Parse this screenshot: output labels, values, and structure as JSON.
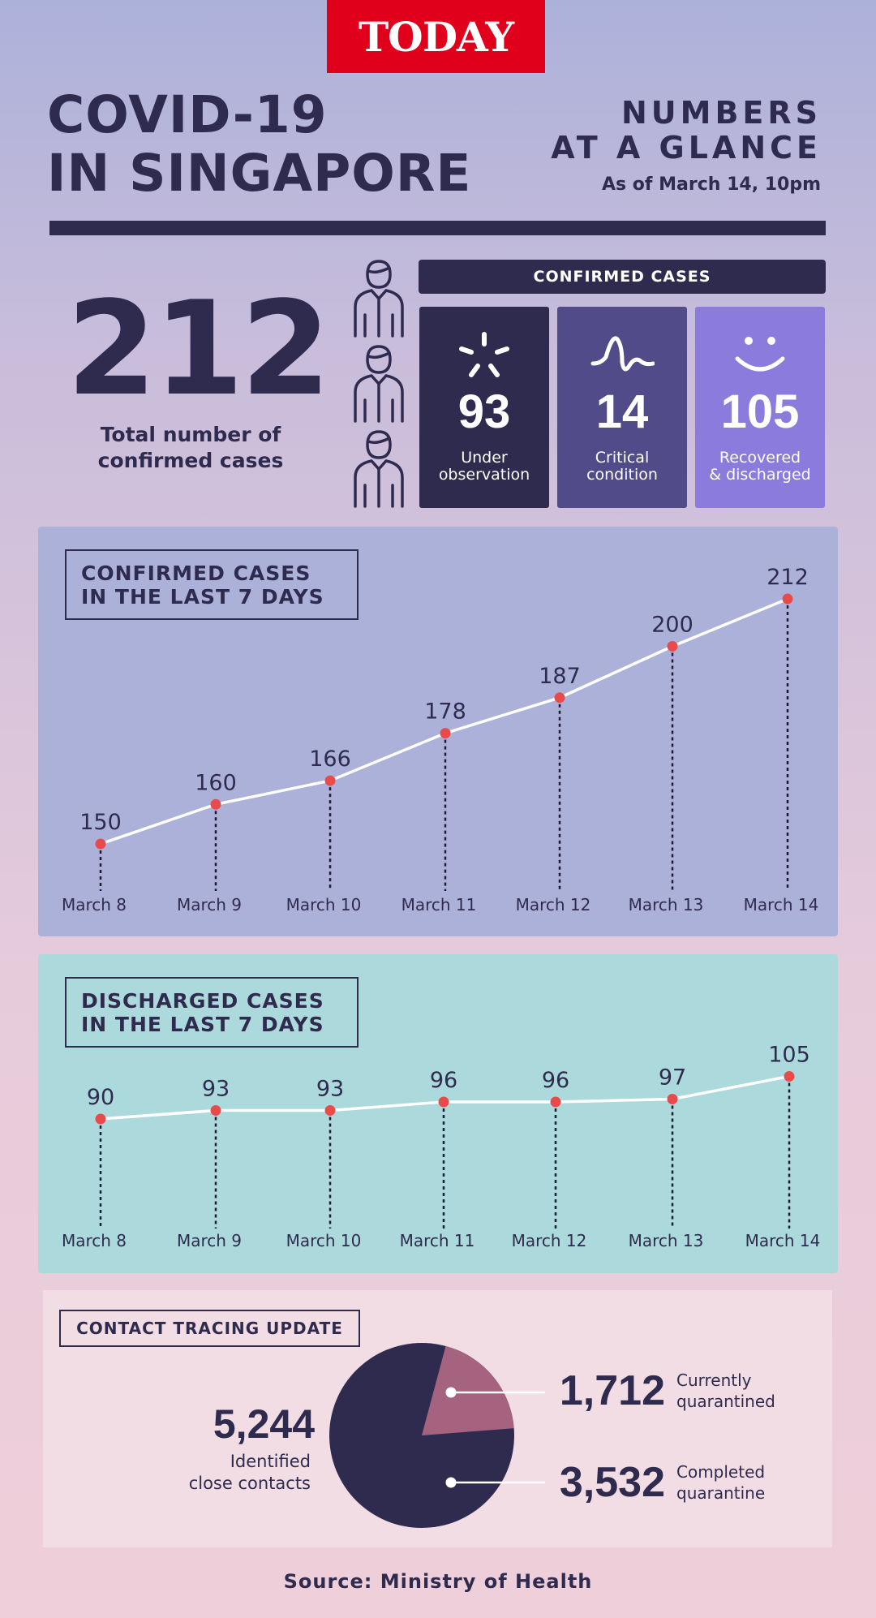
{
  "header": {
    "logo": "TODAY",
    "title_line1": "COVID-19",
    "title_line2": "IN SINGAPORE",
    "glance_line1": "NUMBERS",
    "glance_line2": "AT A GLANCE",
    "as_of": "As of March 14, 10pm"
  },
  "total": {
    "value": "212",
    "label_line1": "Total number of",
    "label_line2": "confirmed cases"
  },
  "confirmed": {
    "heading": "CONFIRMED CASES",
    "boxes": [
      {
        "value": "93",
        "line1": "Under",
        "line2": "observation",
        "color": "#2f2b4f",
        "icon": "burst-icon"
      },
      {
        "value": "14",
        "line1": "Critical",
        "line2": "condition",
        "color": "#524b8a",
        "icon": "pulse-icon"
      },
      {
        "value": "105",
        "line1": "Recovered",
        "line2": "& discharged",
        "color": "#8b7bdd",
        "icon": "smile-icon"
      }
    ]
  },
  "chart_data": [
    {
      "type": "line",
      "title_line1": "CONFIRMED CASES",
      "title_line2": "IN THE LAST 7 DAYS",
      "categories": [
        "March 8",
        "March 9",
        "March 10",
        "March 11",
        "March 12",
        "March 13",
        "March 14"
      ],
      "values": [
        150,
        160,
        166,
        178,
        187,
        200,
        212
      ],
      "line_color": "#ffffff",
      "marker_color": "#e94b4b"
    },
    {
      "type": "line",
      "title_line1": "DISCHARGED CASES",
      "title_line2": "IN THE LAST 7 DAYS",
      "categories": [
        "March 8",
        "March 9",
        "March 10",
        "March 11",
        "March 12",
        "March 13",
        "March 14"
      ],
      "values": [
        90,
        93,
        93,
        96,
        96,
        97,
        105
      ],
      "line_color": "#ffffff",
      "marker_color": "#e94b4b"
    }
  ],
  "contact_tracing": {
    "heading": "CONTACT TRACING UPDATE",
    "total_value": "5,244",
    "total_line1": "Identified",
    "total_line2": "close contacts",
    "slices": [
      {
        "value": "1,712",
        "number": 1712,
        "line1": "Currently",
        "line2": "quarantined",
        "color": "#a5637f"
      },
      {
        "value": "3,532",
        "number": 3532,
        "line1": "Completed",
        "line2": "quarantine",
        "color": "#2f2b4f"
      }
    ]
  },
  "source": "Source: Ministry of Health"
}
